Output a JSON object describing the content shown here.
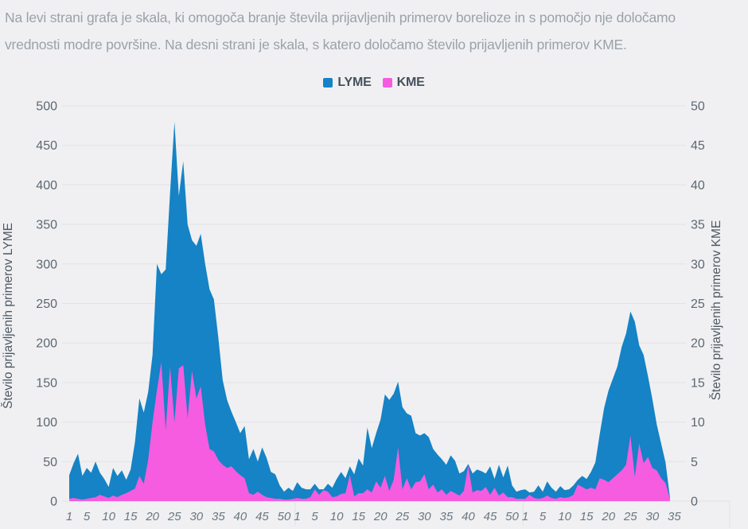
{
  "description": {
    "lines": [
      "Na levi strani grafa je skala, ki omogoča branje števila prijavljenih primerov borelioze in s pomočjo nje določamo",
      "vrednosti modre površine. Na desni strani je skala, s katero določamo število prijavljenih primerov KME."
    ]
  },
  "legend": {
    "items": [
      {
        "label": "LYME",
        "color": "#1583c5"
      },
      {
        "label": "KME",
        "color": "#f55ce0"
      }
    ]
  },
  "chart_data": {
    "type": "area",
    "x_unit": "teden (week of year)",
    "years_weeks": [
      52,
      52,
      34
    ],
    "x_axis_weeks": [
      52,
      52,
      35
    ],
    "x_tick_weeks": [
      1,
      5,
      10,
      15,
      20,
      25,
      30,
      35,
      40,
      45,
      50
    ],
    "left_axis": {
      "title": "Število prijavljenih primerov LYME",
      "min": 0,
      "max": 500,
      "step": 50
    },
    "right_axis": {
      "title": "Število prijavljenih primerov KME",
      "min": 0,
      "max": 50,
      "step": 5
    },
    "grid": true,
    "colors": {
      "grid": "#e2e2e5",
      "background": "#f0f0f2"
    },
    "series": [
      {
        "name": "LYME",
        "axis": "left",
        "color": "#1583c5",
        "values": [
          33,
          48,
          60,
          32,
          42,
          36,
          50,
          36,
          28,
          18,
          42,
          32,
          39,
          27,
          40,
          75,
          130,
          112,
          138,
          185,
          300,
          287,
          293,
          390,
          480,
          386,
          430,
          350,
          330,
          323,
          338,
          300,
          268,
          255,
          207,
          153,
          128,
          113,
          100,
          86,
          95,
          53,
          66,
          50,
          68,
          55,
          37,
          34,
          20,
          12,
          17,
          13,
          24,
          17,
          15,
          15,
          22,
          15,
          15,
          22,
          17,
          28,
          37,
          29,
          44,
          34,
          54,
          45,
          93,
          67,
          86,
          103,
          135,
          128,
          136,
          151,
          119,
          111,
          108,
          86,
          83,
          86,
          81,
          66,
          59,
          53,
          46,
          58,
          51,
          35,
          38,
          47,
          35,
          40,
          38,
          35,
          44,
          28,
          46,
          30,
          45,
          20,
          12,
          14,
          15,
          11,
          12,
          20,
          12,
          25,
          17,
          12,
          19,
          14,
          15,
          20,
          27,
          32,
          28,
          37,
          49,
          85,
          118,
          140,
          155,
          170,
          195,
          212,
          240,
          227,
          197,
          185,
          158,
          129,
          97,
          73,
          49,
          5
        ]
      },
      {
        "name": "KME",
        "axis": "right",
        "color": "#f55ce0",
        "values": [
          0.3,
          0.4,
          0.3,
          0.2,
          0.3,
          0.4,
          0.5,
          0.8,
          0.6,
          0.4,
          0.7,
          0.5,
          0.8,
          1.0,
          1.3,
          1.6,
          3.2,
          2.2,
          5.2,
          10,
          14,
          17.6,
          9,
          17,
          10,
          16.8,
          17.2,
          10.5,
          16.5,
          13,
          14.5,
          9.7,
          6.6,
          6.3,
          5.2,
          4.6,
          4.2,
          4.4,
          3.8,
          3.3,
          2.9,
          1.0,
          0.8,
          1.2,
          0.8,
          0.5,
          0.4,
          0.3,
          0.3,
          0.2,
          0.2,
          0.3,
          0.4,
          0.3,
          0.3,
          0.5,
          1.5,
          0.8,
          1.4,
          1.2,
          0.5,
          0.6,
          0.9,
          1.0,
          3.3,
          0.6,
          1.0,
          1.0,
          1.5,
          1.1,
          2.5,
          1.7,
          3.2,
          1.3,
          2.7,
          6.8,
          1.5,
          2.9,
          1.5,
          2.4,
          2.5,
          3.4,
          1.5,
          2.1,
          1.1,
          1.5,
          0.8,
          1.3,
          1.0,
          0.7,
          1.3,
          4.5,
          1.1,
          1.4,
          1.3,
          1.8,
          0.8,
          1.7,
          0.7,
          1.1,
          0.5,
          0.5,
          0.3,
          0.3,
          0.3,
          0.8,
          0.4,
          0.3,
          0.4,
          0.7,
          0.4,
          0.3,
          0.5,
          0.4,
          0.5,
          0.8,
          2.1,
          1.8,
          1.5,
          1.7,
          1.5,
          2.9,
          2.7,
          2.4,
          2.9,
          3.4,
          3.9,
          4.6,
          8.3,
          3.1,
          7.3,
          4.8,
          5.6,
          4.2,
          3.9,
          2.9,
          2.3,
          0.3
        ]
      }
    ]
  }
}
